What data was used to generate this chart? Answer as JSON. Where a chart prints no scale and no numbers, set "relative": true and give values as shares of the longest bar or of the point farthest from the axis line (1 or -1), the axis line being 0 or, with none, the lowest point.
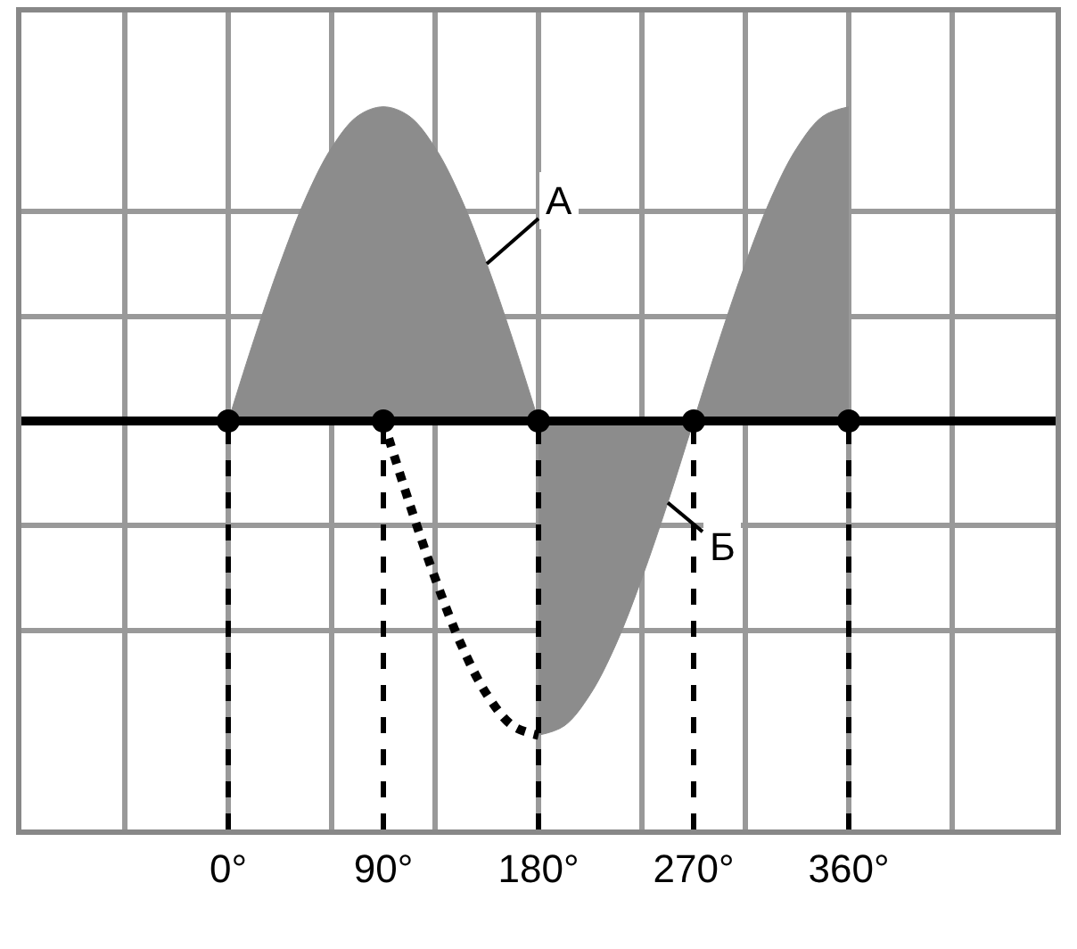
{
  "chart_data": {
    "type": "area",
    "relative": true,
    "xlim": [
      -120,
      480
    ],
    "xticks": [
      {
        "value": 0,
        "label": "0°"
      },
      {
        "value": 90,
        "label": "90°"
      },
      {
        "value": 180,
        "label": "180°"
      },
      {
        "value": 270,
        "label": "270°"
      },
      {
        "value": 360,
        "label": "360°"
      }
    ],
    "grid": true,
    "legend": false,
    "series": [
      {
        "name": "А",
        "color": "#8c8c8c",
        "x": [
          0,
          15,
          30,
          45,
          60,
          75,
          90,
          105,
          120,
          135,
          150,
          165,
          180
        ],
        "values": [
          0,
          0.26,
          0.5,
          0.71,
          0.87,
          0.97,
          1,
          0.97,
          0.87,
          0.71,
          0.5,
          0.26,
          0
        ]
      },
      {
        "name": "Б",
        "color": "#8c8c8c",
        "x": [
          180,
          195,
          210,
          225,
          240,
          255,
          270,
          285,
          300,
          315,
          330,
          345,
          360
        ],
        "values": [
          -1,
          -0.97,
          -0.87,
          -0.71,
          -0.5,
          -0.26,
          0,
          0.26,
          0.5,
          0.71,
          0.87,
          0.97,
          1
        ]
      },
      {
        "type": "line",
        "color": "#000000",
        "line_style": "dotted",
        "x": [
          90,
          105,
          120,
          135,
          150,
          165,
          180
        ],
        "values": [
          0,
          -0.26,
          -0.5,
          -0.71,
          -0.87,
          -0.97,
          -1
        ]
      },
      {
        "type": "scatter",
        "color": "#000000",
        "marker": "circle",
        "x": [
          0,
          90,
          180,
          270,
          360
        ],
        "values": [
          0,
          0,
          0,
          0,
          0
        ]
      }
    ],
    "ref_lines": [
      {
        "axis": "x",
        "value": 0,
        "line_style": "dashed",
        "color": "#000000"
      },
      {
        "axis": "x",
        "value": 90,
        "line_style": "dashed",
        "color": "#000000"
      },
      {
        "axis": "x",
        "value": 180,
        "line_style": "dashed",
        "color": "#000000"
      },
      {
        "axis": "x",
        "value": 270,
        "line_style": "dashed",
        "color": "#000000"
      },
      {
        "axis": "x",
        "value": 360,
        "line_style": "dashed",
        "color": "#000000"
      }
    ]
  }
}
